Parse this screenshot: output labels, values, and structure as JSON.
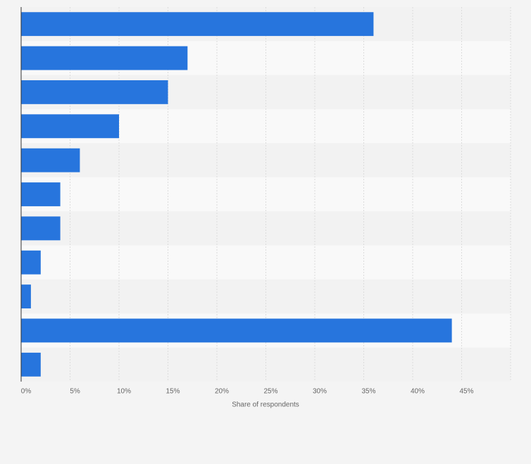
{
  "chart_data": {
    "type": "hbar",
    "x_label": "Share of respondents",
    "categories": [
      null,
      null,
      null,
      null,
      null,
      null,
      null,
      null,
      null,
      null,
      null
    ],
    "values": [
      36,
      17,
      15,
      10,
      6,
      4,
      4,
      2,
      1,
      44,
      2
    ],
    "color": "#2775dd",
    "xlim": [
      0,
      50
    ],
    "xticks": [
      {
        "value": 0,
        "label": "0%"
      },
      {
        "value": 5,
        "label": "5%"
      },
      {
        "value": 10,
        "label": "10%"
      },
      {
        "value": 15,
        "label": "15%"
      },
      {
        "value": 20,
        "label": "20%"
      },
      {
        "value": 25,
        "label": "25%"
      },
      {
        "value": 30,
        "label": "30%"
      },
      {
        "value": 35,
        "label": "35%"
      },
      {
        "value": 40,
        "label": "40%"
      },
      {
        "value": 45,
        "label": "45%"
      }
    ],
    "grid": true
  }
}
